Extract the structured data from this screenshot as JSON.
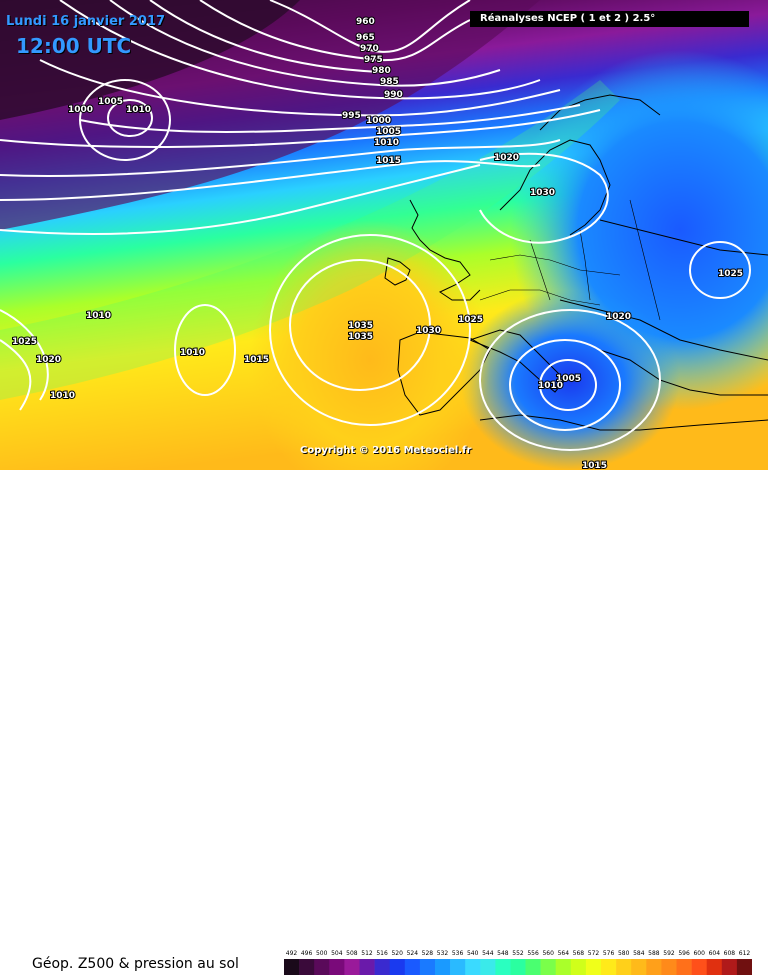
{
  "header": {
    "date": "Lundi 16 janvier 2017",
    "time": "12:00 UTC",
    "source": "Réanalyses NCEP ( 1 et 2 ) 2.5°"
  },
  "copyright": "Copyright © 2016 Meteociel.fr",
  "field_label": "Géop. Z500 & pression au sol",
  "color_scale": {
    "values": [
      "492",
      "496",
      "500",
      "504",
      "508",
      "512",
      "516",
      "520",
      "524",
      "528",
      "532",
      "536",
      "540",
      "544",
      "548",
      "552",
      "556",
      "560",
      "564",
      "568",
      "572",
      "576",
      "580",
      "584",
      "588",
      "592",
      "596",
      "600",
      "604",
      "608",
      "612"
    ],
    "colors": [
      "#1a0a1a",
      "#3a0a3a",
      "#5a0a5a",
      "#7a0a7a",
      "#9a1a9a",
      "#6a1aaa",
      "#3a2acf",
      "#1a3aef",
      "#1a5aff",
      "#1a7aff",
      "#1a9aff",
      "#2abaff",
      "#3adaff",
      "#3aeaea",
      "#2affc0",
      "#2affa0",
      "#4aff70",
      "#7aff4a",
      "#aaff2a",
      "#d0ff1a",
      "#f0ff1a",
      "#ffea1a",
      "#ffd01a",
      "#ffba1a",
      "#ffa01a",
      "#ff8a1a",
      "#ff701a",
      "#ff501a",
      "#e03010",
      "#b01a1a",
      "#701010"
    ]
  },
  "isobar_labels": [
    "960",
    "965",
    "970",
    "975",
    "980",
    "985",
    "990",
    "995",
    "1000",
    "1005",
    "1010",
    "1000",
    "1005",
    "1010",
    "1015",
    "1020",
    "1030",
    "1025",
    "1010",
    "1025",
    "1020",
    "1010",
    "1010",
    "1015",
    "1035",
    "1035",
    "1030",
    "1025",
    "1020",
    "1005",
    "1010",
    "1015"
  ]
}
